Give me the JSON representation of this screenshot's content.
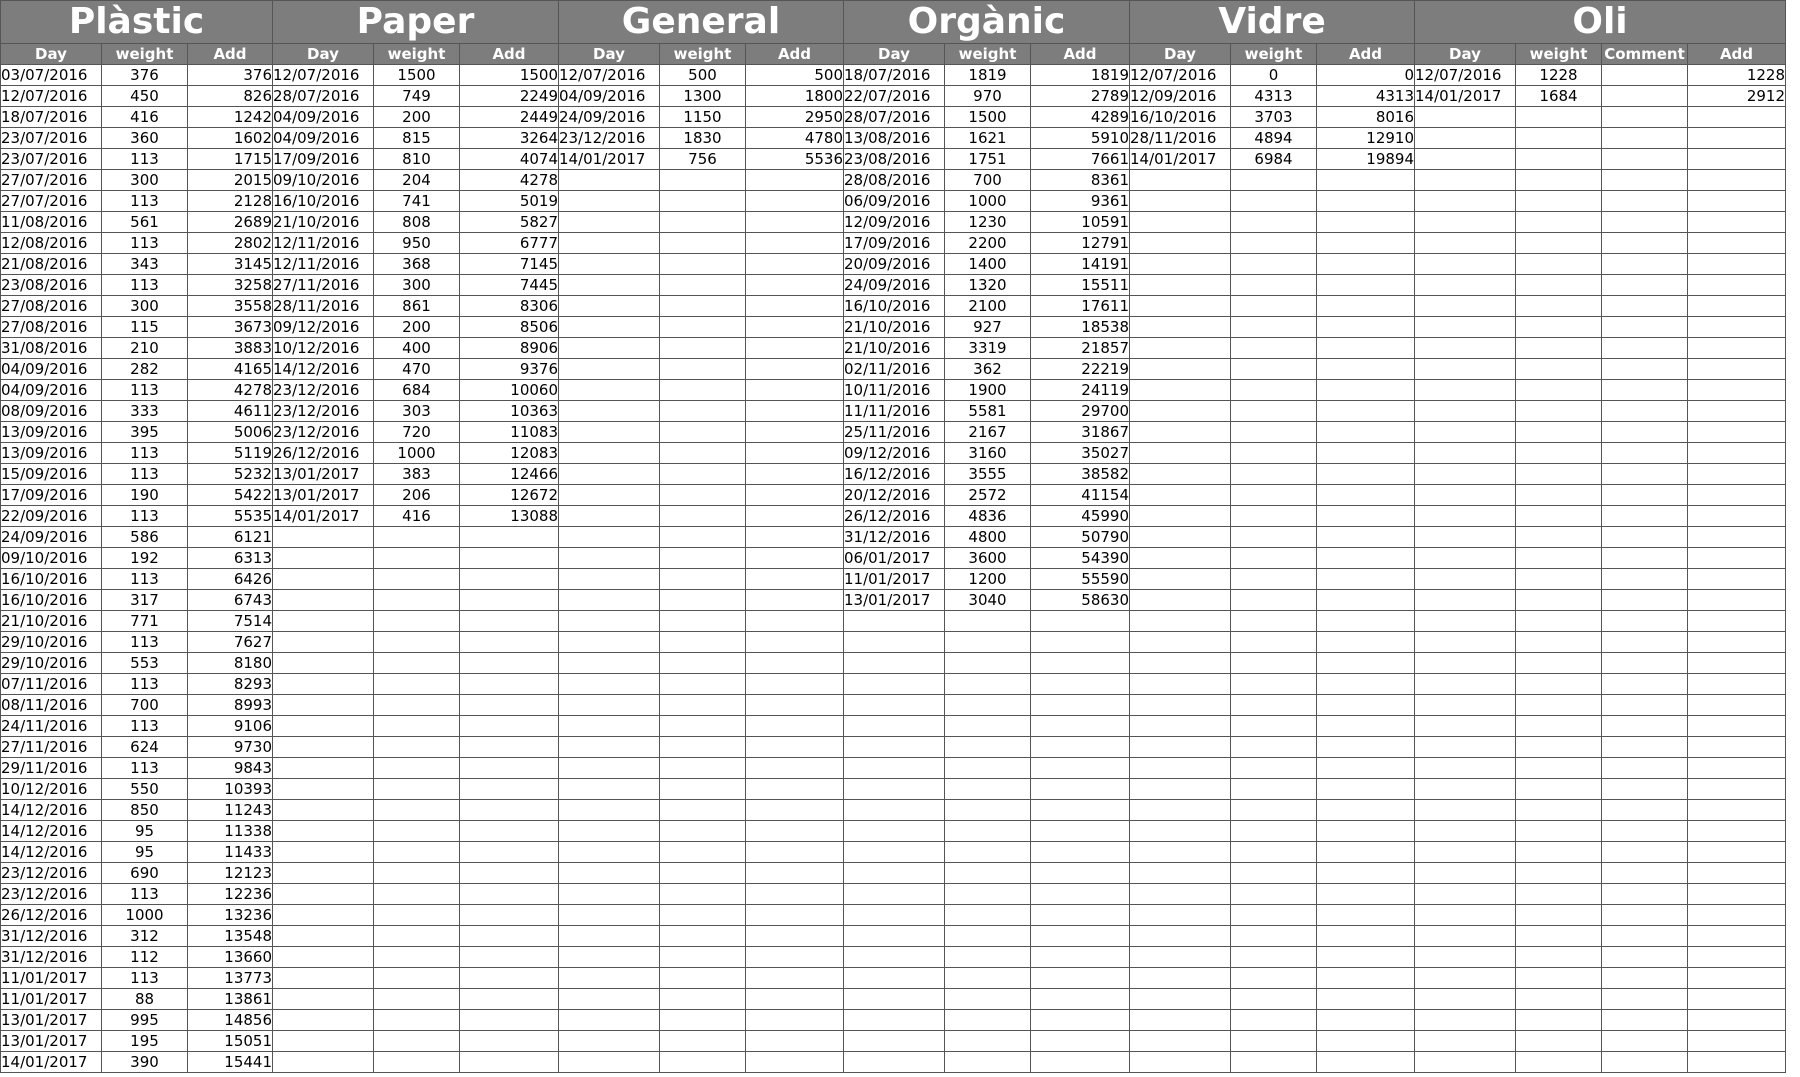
{
  "sections": [
    {
      "key": "plastic",
      "title": "Plàstic",
      "headers": [
        "Day",
        "weight",
        "Add"
      ],
      "rows": [
        [
          "03/07/2016",
          "376",
          "376"
        ],
        [
          "12/07/2016",
          "450",
          "826"
        ],
        [
          "18/07/2016",
          "416",
          "1242"
        ],
        [
          "23/07/2016",
          "360",
          "1602"
        ],
        [
          "23/07/2016",
          "113",
          "1715"
        ],
        [
          "27/07/2016",
          "300",
          "2015"
        ],
        [
          "27/07/2016",
          "113",
          "2128"
        ],
        [
          "11/08/2016",
          "561",
          "2689"
        ],
        [
          "12/08/2016",
          "113",
          "2802"
        ],
        [
          "21/08/2016",
          "343",
          "3145"
        ],
        [
          "23/08/2016",
          "113",
          "3258"
        ],
        [
          "27/08/2016",
          "300",
          "3558"
        ],
        [
          "27/08/2016",
          "115",
          "3673"
        ],
        [
          "31/08/2016",
          "210",
          "3883"
        ],
        [
          "04/09/2016",
          "282",
          "4165"
        ],
        [
          "04/09/2016",
          "113",
          "4278"
        ],
        [
          "08/09/2016",
          "333",
          "4611"
        ],
        [
          "13/09/2016",
          "395",
          "5006"
        ],
        [
          "13/09/2016",
          "113",
          "5119"
        ],
        [
          "15/09/2016",
          "113",
          "5232"
        ],
        [
          "17/09/2016",
          "190",
          "5422"
        ],
        [
          "22/09/2016",
          "113",
          "5535"
        ],
        [
          "24/09/2016",
          "586",
          "6121"
        ],
        [
          "09/10/2016",
          "192",
          "6313"
        ],
        [
          "16/10/2016",
          "113",
          "6426"
        ],
        [
          "16/10/2016",
          "317",
          "6743"
        ],
        [
          "21/10/2016",
          "771",
          "7514"
        ],
        [
          "29/10/2016",
          "113",
          "7627"
        ],
        [
          "29/10/2016",
          "553",
          "8180"
        ],
        [
          "07/11/2016",
          "113",
          "8293"
        ],
        [
          "08/11/2016",
          "700",
          "8993"
        ],
        [
          "24/11/2016",
          "113",
          "9106"
        ],
        [
          "27/11/2016",
          "624",
          "9730"
        ],
        [
          "29/11/2016",
          "113",
          "9843"
        ],
        [
          "10/12/2016",
          "550",
          "10393"
        ],
        [
          "14/12/2016",
          "850",
          "11243"
        ],
        [
          "14/12/2016",
          "95",
          "11338"
        ],
        [
          "14/12/2016",
          "95",
          "11433"
        ],
        [
          "23/12/2016",
          "690",
          "12123"
        ],
        [
          "23/12/2016",
          "113",
          "12236"
        ],
        [
          "26/12/2016",
          "1000",
          "13236"
        ],
        [
          "31/12/2016",
          "312",
          "13548"
        ],
        [
          "31/12/2016",
          "112",
          "13660"
        ],
        [
          "11/01/2017",
          "113",
          "13773"
        ],
        [
          "11/01/2017",
          "88",
          "13861"
        ],
        [
          "13/01/2017",
          "995",
          "14856"
        ],
        [
          "13/01/2017",
          "195",
          "15051"
        ],
        [
          "14/01/2017",
          "390",
          "15441"
        ]
      ]
    },
    {
      "key": "paper",
      "title": "Paper",
      "headers": [
        "Day",
        "weight",
        "Add"
      ],
      "rows": [
        [
          "12/07/2016",
          "1500",
          "1500"
        ],
        [
          "28/07/2016",
          "749",
          "2249"
        ],
        [
          "04/09/2016",
          "200",
          "2449"
        ],
        [
          "04/09/2016",
          "815",
          "3264"
        ],
        [
          "17/09/2016",
          "810",
          "4074"
        ],
        [
          "09/10/2016",
          "204",
          "4278"
        ],
        [
          "16/10/2016",
          "741",
          "5019"
        ],
        [
          "21/10/2016",
          "808",
          "5827"
        ],
        [
          "12/11/2016",
          "950",
          "6777"
        ],
        [
          "12/11/2016",
          "368",
          "7145"
        ],
        [
          "27/11/2016",
          "300",
          "7445"
        ],
        [
          "28/11/2016",
          "861",
          "8306"
        ],
        [
          "09/12/2016",
          "200",
          "8506"
        ],
        [
          "10/12/2016",
          "400",
          "8906"
        ],
        [
          "14/12/2016",
          "470",
          "9376"
        ],
        [
          "23/12/2016",
          "684",
          "10060"
        ],
        [
          "23/12/2016",
          "303",
          "10363"
        ],
        [
          "23/12/2016",
          "720",
          "11083"
        ],
        [
          "26/12/2016",
          "1000",
          "12083"
        ],
        [
          "13/01/2017",
          "383",
          "12466"
        ],
        [
          "13/01/2017",
          "206",
          "12672"
        ],
        [
          "14/01/2017",
          "416",
          "13088"
        ]
      ]
    },
    {
      "key": "general",
      "title": "General",
      "headers": [
        "Day",
        "weight",
        "Add"
      ],
      "rows": [
        [
          "12/07/2016",
          "500",
          "500"
        ],
        [
          "04/09/2016",
          "1300",
          "1800"
        ],
        [
          "24/09/2016",
          "1150",
          "2950"
        ],
        [
          "23/12/2016",
          "1830",
          "4780"
        ],
        [
          "14/01/2017",
          "756",
          "5536"
        ]
      ]
    },
    {
      "key": "organic",
      "title": "Orgànic",
      "headers": [
        "Day",
        "weight",
        "Add"
      ],
      "rows": [
        [
          "18/07/2016",
          "1819",
          "1819"
        ],
        [
          "22/07/2016",
          "970",
          "2789"
        ],
        [
          "28/07/2016",
          "1500",
          "4289"
        ],
        [
          "13/08/2016",
          "1621",
          "5910"
        ],
        [
          "23/08/2016",
          "1751",
          "7661"
        ],
        [
          "28/08/2016",
          "700",
          "8361"
        ],
        [
          "06/09/2016",
          "1000",
          "9361"
        ],
        [
          "12/09/2016",
          "1230",
          "10591"
        ],
        [
          "17/09/2016",
          "2200",
          "12791"
        ],
        [
          "20/09/2016",
          "1400",
          "14191"
        ],
        [
          "24/09/2016",
          "1320",
          "15511"
        ],
        [
          "16/10/2016",
          "2100",
          "17611"
        ],
        [
          "21/10/2016",
          "927",
          "18538"
        ],
        [
          "21/10/2016",
          "3319",
          "21857"
        ],
        [
          "02/11/2016",
          "362",
          "22219"
        ],
        [
          "10/11/2016",
          "1900",
          "24119"
        ],
        [
          "11/11/2016",
          "5581",
          "29700"
        ],
        [
          "25/11/2016",
          "2167",
          "31867"
        ],
        [
          "09/12/2016",
          "3160",
          "35027"
        ],
        [
          "16/12/2016",
          "3555",
          "38582"
        ],
        [
          "20/12/2016",
          "2572",
          "41154"
        ],
        [
          "26/12/2016",
          "4836",
          "45990"
        ],
        [
          "31/12/2016",
          "4800",
          "50790"
        ],
        [
          "06/01/2017",
          "3600",
          "54390"
        ],
        [
          "11/01/2017",
          "1200",
          "55590"
        ],
        [
          "13/01/2017",
          "3040",
          "58630"
        ]
      ]
    },
    {
      "key": "glass",
      "title": "Vidre",
      "headers": [
        "Day",
        "weight",
        "Add"
      ],
      "rows": [
        [
          "12/07/2016",
          "0",
          "0"
        ],
        [
          "12/09/2016",
          "4313",
          "4313"
        ],
        [
          "16/10/2016",
          "3703",
          "8016"
        ],
        [
          "28/11/2016",
          "4894",
          "12910"
        ],
        [
          "14/01/2017",
          "6984",
          "19894"
        ]
      ]
    },
    {
      "key": "oil",
      "title": "Oli",
      "headers": [
        "Day",
        "weight",
        "Comment",
        "Add"
      ],
      "rows": [
        [
          "12/07/2016",
          "1228",
          "",
          "1228"
        ],
        [
          "14/01/2017",
          "1684",
          "",
          "2912"
        ]
      ]
    }
  ]
}
